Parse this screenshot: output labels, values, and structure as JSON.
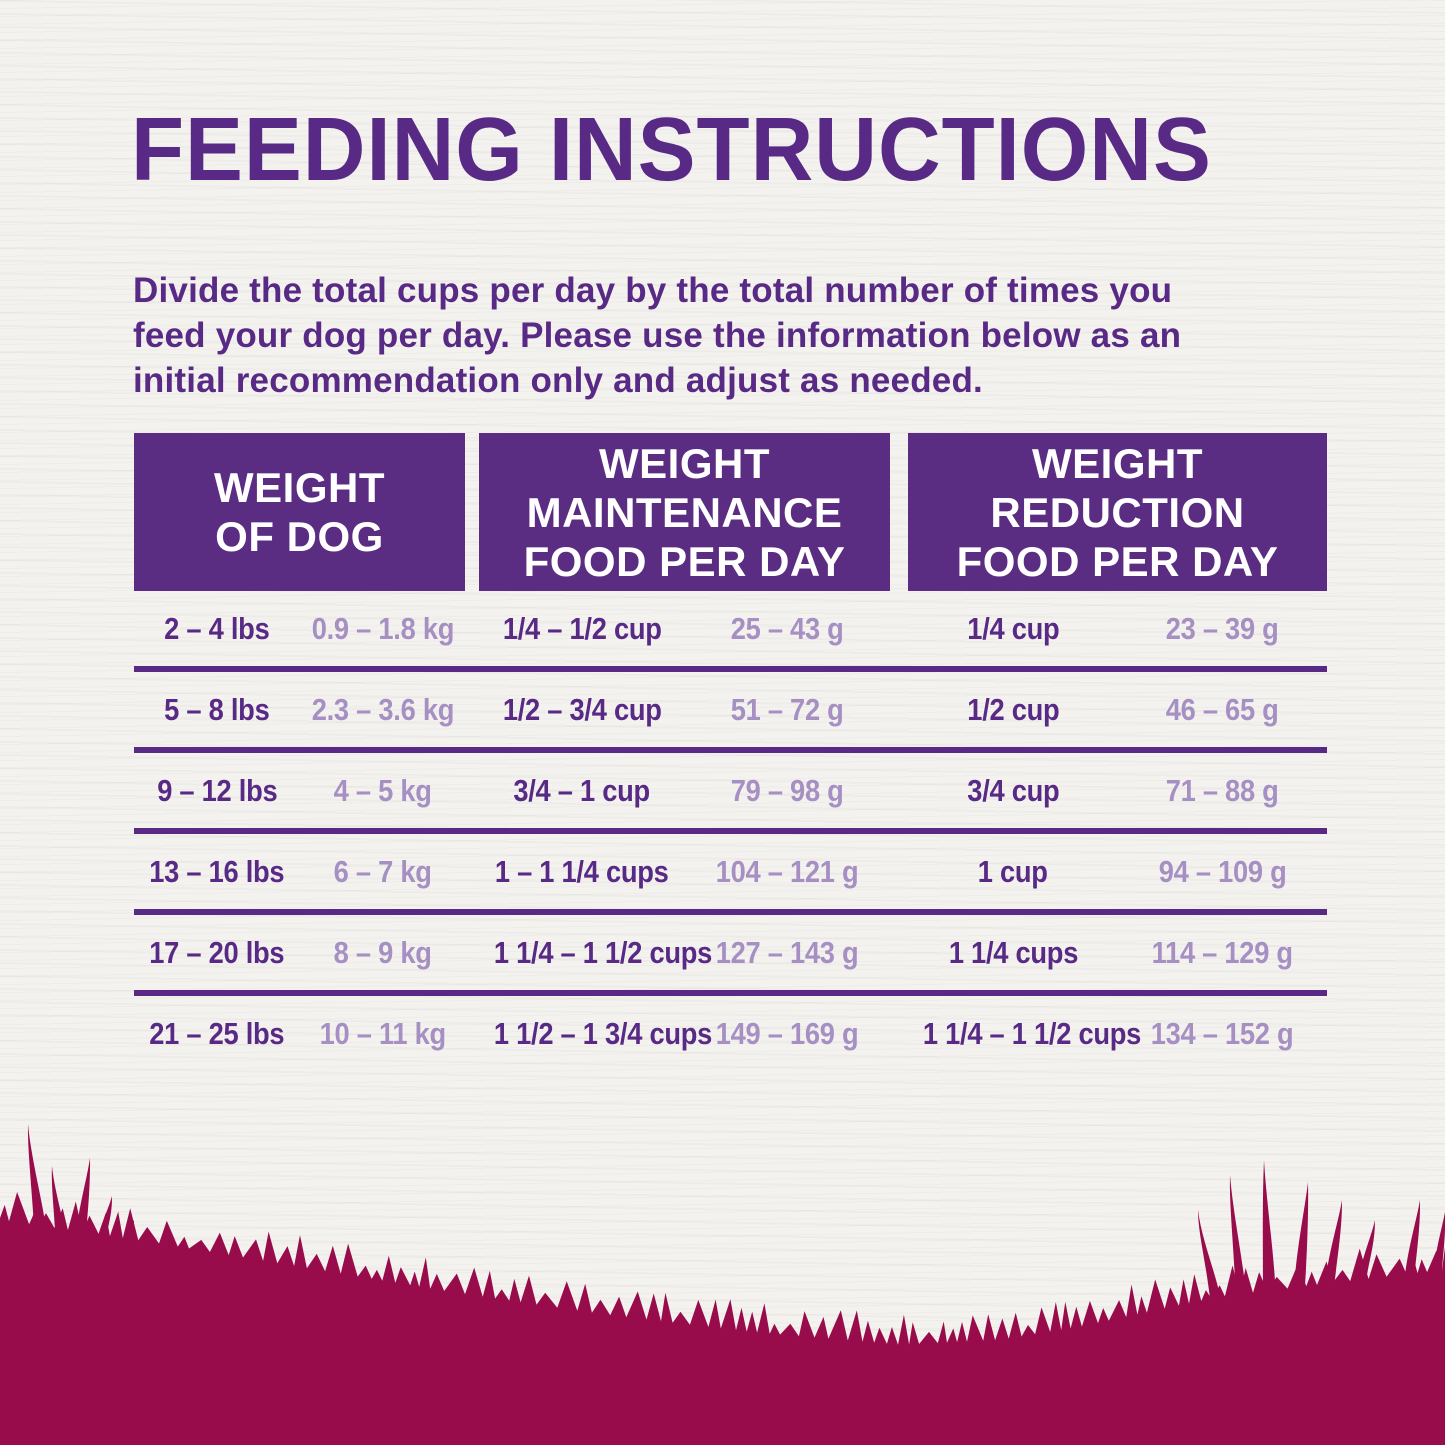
{
  "title": "FEEDING INSTRUCTIONS",
  "intro": "Divide the total cups per day by the total number of times you\nfeed your dog per day. Please use the information below as an\ninitial recommendation only and adjust as needed.",
  "table": {
    "headers": [
      {
        "label": "WEIGHT\nOF DOG"
      },
      {
        "label": "WEIGHT\nMAINTENANCE\nFOOD PER DAY"
      },
      {
        "label": "WEIGHT\nREDUCTION\nFOOD PER DAY"
      }
    ],
    "rows": [
      {
        "lbs": "2 – 4 lbs",
        "kg": "0.9 – 1.8 kg",
        "maintenance_cups": "1/4 – 1/2 cup",
        "maintenance_grams": "25 – 43 g",
        "reduction_cups": "1/4 cup",
        "reduction_grams": "23 – 39 g"
      },
      {
        "lbs": "5 – 8 lbs",
        "kg": "2.3 – 3.6 kg",
        "maintenance_cups": "1/2 – 3/4 cup",
        "maintenance_grams": "51 – 72 g",
        "reduction_cups": "1/2 cup",
        "reduction_grams": "46 – 65 g"
      },
      {
        "lbs": "9 – 12 lbs",
        "kg": "4 – 5 kg",
        "maintenance_cups": "3/4 – 1 cup",
        "maintenance_grams": "79 – 98 g",
        "reduction_cups": "3/4 cup",
        "reduction_grams": "71 – 88 g"
      },
      {
        "lbs": "13 – 16 lbs",
        "kg": "6 – 7 kg",
        "maintenance_cups": "1 – 1 1/4 cups",
        "maintenance_grams": "104 – 121 g",
        "reduction_cups": "1 cup",
        "reduction_grams": "94 – 109 g"
      },
      {
        "lbs": "17 – 20 lbs",
        "kg": "8 – 9 kg",
        "maintenance_cups": "1 1/4 – 1 1/2 cups",
        "maintenance_grams": "127 – 143 g",
        "reduction_cups": "1 1/4 cups",
        "reduction_grams": "114 – 129 g"
      },
      {
        "lbs": "21 – 25 lbs",
        "kg": "10 – 11 kg",
        "maintenance_cups": "1 1/2 – 1 3/4 cups",
        "maintenance_grams": "149 – 169 g",
        "reduction_cups": "1 1/4 – 1 1/2 cups",
        "reduction_grams": "134 – 152 g"
      }
    ]
  },
  "colors": {
    "dark_purple": "#582a85",
    "light_purple": "#a68fc3",
    "header_background": "#5b2d82",
    "grass": "#980c4b",
    "background": "#f4f2ef"
  }
}
